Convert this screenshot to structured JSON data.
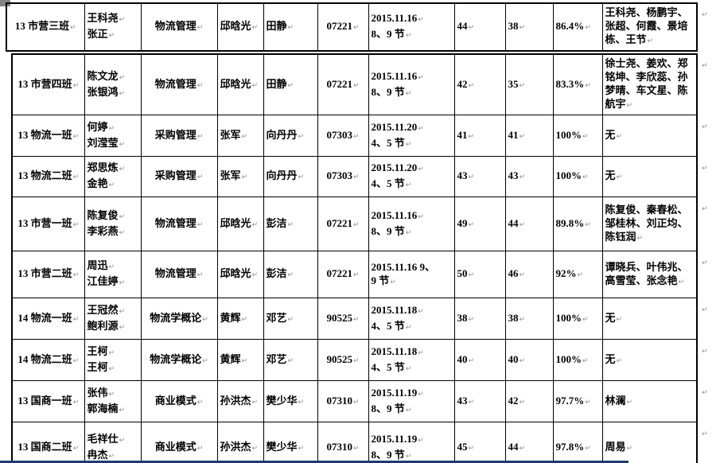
{
  "meta": {
    "paragraph_mark": "↵",
    "border_color": "#000000",
    "text_color": "#000000",
    "mark_color": "#8f8f8f",
    "bottom_edge_color": "#22386e",
    "corner_color": "#848484"
  },
  "column_keys": [
    "class",
    "checkers",
    "course",
    "teacher",
    "assistant",
    "room",
    "datetime",
    "total",
    "present",
    "rate",
    "absent"
  ],
  "top_table": {
    "rows": [
      {
        "class": [
          "13 市营三班↵"
        ],
        "checkers": [
          "王科尧↵",
          "张正↵"
        ],
        "course": [
          "物流管理↵"
        ],
        "teacher": [
          "邱晗光↵"
        ],
        "assistant": [
          "田静↵"
        ],
        "room": [
          "07221↵"
        ],
        "datetime": [
          "2015.11.16↵",
          "8、9 节↵"
        ],
        "total": [
          "44↵"
        ],
        "present": [
          "38↵"
        ],
        "rate": [
          "86.4%↵"
        ],
        "absent": [
          "王科尧、杨鹏宇、张超、何霞、景培栋、王节↵"
        ]
      }
    ]
  },
  "main_table": {
    "rows": [
      {
        "class": [
          "13 市营四班↵"
        ],
        "checkers": [
          "陈文龙↵",
          "张银鸿↵"
        ],
        "course": [
          "物流管理↵"
        ],
        "teacher": [
          "邱晗光↵"
        ],
        "assistant": [
          "田静↵"
        ],
        "room": [
          "07221↵"
        ],
        "datetime": [
          "2015.11.16↵",
          "8、9 节↵"
        ],
        "total": [
          "42↵"
        ],
        "present": [
          "35↵"
        ],
        "rate": [
          "83.3%↵"
        ],
        "absent": [
          "徐士尧、姜欢、郑铭坤、李欣蕊、孙梦晴、车文星、陈航宇↵"
        ]
      },
      {
        "class": [
          "13 物流一班↵"
        ],
        "checkers": [
          "何婷↵",
          "刘滢莹↵"
        ],
        "course": [
          "采购管理↵"
        ],
        "teacher": [
          "张军↵"
        ],
        "assistant": [
          "向丹丹↵"
        ],
        "room": [
          "07303↵"
        ],
        "datetime": [
          "2015.11.20↵",
          "4、5 节↵"
        ],
        "total": [
          "41↵"
        ],
        "present": [
          "41↵"
        ],
        "rate": [
          "100%↵"
        ],
        "absent": [
          "无↵"
        ]
      },
      {
        "class": [
          "13 物流二班↵"
        ],
        "checkers": [
          "郑思炼↵",
          "金艳↵"
        ],
        "course": [
          "采购管理↵"
        ],
        "teacher": [
          "张军↵"
        ],
        "assistant": [
          "向丹丹↵"
        ],
        "room": [
          "07303↵"
        ],
        "datetime": [
          "2015.11.20↵",
          "4、5 节↵"
        ],
        "total": [
          "43↵"
        ],
        "present": [
          "43↵"
        ],
        "rate": [
          "100%↵"
        ],
        "absent": [
          "无↵"
        ]
      },
      {
        "class": [
          "13 市营一班↵"
        ],
        "checkers": [
          "陈复俊↵",
          "李彩燕↵"
        ],
        "course": [
          "物流管理↵"
        ],
        "teacher": [
          "邱晗光↵"
        ],
        "assistant": [
          "彭洁↵"
        ],
        "room": [
          "07221↵"
        ],
        "datetime": [
          "2015.11.16↵",
          "8、9 节↵"
        ],
        "total": [
          "49↵"
        ],
        "present": [
          "44↵"
        ],
        "rate": [
          "89.8%↵"
        ],
        "absent": [
          "陈复俊、秦春松、邹桂林、刘正均、陈钰润↵"
        ]
      },
      {
        "class": [
          "13 市营二班↵"
        ],
        "checkers": [
          "周迅↵",
          "江佳婷↵"
        ],
        "course": [
          "物流管理↵"
        ],
        "teacher": [
          "邱晗光↵"
        ],
        "assistant": [
          "彭洁↵"
        ],
        "room": [
          "07221↵"
        ],
        "datetime": [
          "2015.11.16  9、",
          "9 节↵"
        ],
        "total": [
          "50↵"
        ],
        "present": [
          "46↵"
        ],
        "rate": [
          "92%↵"
        ],
        "absent": [
          "谭晓兵、叶伟兆、高雪莹、张念艳↵"
        ]
      },
      {
        "class": [
          "14 物流一班↵"
        ],
        "checkers": [
          "王冠然↵",
          "鲍利源↵"
        ],
        "course": [
          "物流学概论↵"
        ],
        "teacher": [
          "黄辉↵"
        ],
        "assistant": [
          "邓艺↵"
        ],
        "room": [
          "90525↵"
        ],
        "datetime": [
          "2015.11.18↵",
          "4、5 节↵"
        ],
        "total": [
          "38↵"
        ],
        "present": [
          "38↵"
        ],
        "rate": [
          "100%↵"
        ],
        "absent": [
          "无↵"
        ]
      },
      {
        "class": [
          "14 物流二班↵"
        ],
        "checkers": [
          "王柯↵",
          "王柯↵"
        ],
        "course": [
          "物流学概论↵"
        ],
        "teacher": [
          "黄辉↵"
        ],
        "assistant": [
          "邓艺↵"
        ],
        "room": [
          "90525↵"
        ],
        "datetime": [
          "2015.11.18↵",
          "4、5 节↵"
        ],
        "total": [
          "40↵"
        ],
        "present": [
          "40↵"
        ],
        "rate": [
          "100%↵"
        ],
        "absent": [
          "无↵"
        ]
      },
      {
        "class": [
          "13 国商一班↵"
        ],
        "checkers": [
          "张伟↵",
          "郭海楠↵"
        ],
        "course": [
          "商业模式↵"
        ],
        "teacher": [
          "孙洪杰↵"
        ],
        "assistant": [
          "樊少华↵"
        ],
        "room": [
          "07310↵"
        ],
        "datetime": [
          "2015.11.19↵",
          "8、9 节↵"
        ],
        "total": [
          "43↵"
        ],
        "present": [
          "42↵"
        ],
        "rate": [
          "97.7%↵"
        ],
        "absent": [
          "林澜↵"
        ]
      },
      {
        "class": [
          "13 国商二班↵"
        ],
        "checkers": [
          "毛祥仕↵",
          "冉杰↵"
        ],
        "course": [
          "商业模式↵"
        ],
        "teacher": [
          "孙洪杰↵"
        ],
        "assistant": [
          "樊少华↵"
        ],
        "room": [
          "07310↵"
        ],
        "datetime": [
          "2015.11.19↵",
          "8、9 节↵"
        ],
        "total": [
          "45↵"
        ],
        "present": [
          "44↵"
        ],
        "rate": [
          "97.8%↵"
        ],
        "absent": [
          "周易↵"
        ]
      }
    ]
  }
}
